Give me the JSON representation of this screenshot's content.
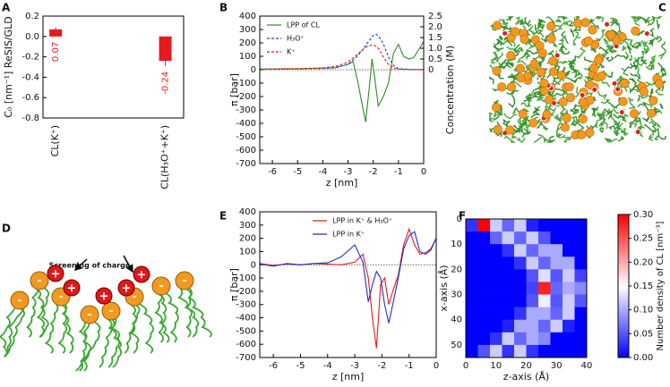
{
  "panel_labels": [
    "A",
    "B",
    "C",
    "D",
    "E",
    "F"
  ],
  "diagram": {
    "title": "Screening of charge",
    "cation": "+",
    "anion": "-"
  },
  "chart_data": [
    {
      "type": "bar",
      "ylabel": "C₀ [nm⁻¹] ReSIS/GLD",
      "categories": [
        "CL(K⁺)",
        "CL(H₃O⁺+K⁺)"
      ],
      "values": [
        0.07,
        -0.24
      ],
      "errors": [
        0.02,
        0.05
      ],
      "color": "#e8191c",
      "ylim": [
        -0.8,
        0.2
      ],
      "yticks": [
        0.2,
        {
          "value": 0,
          "label": "0.0"
        },
        -0.2,
        -0.4,
        -0.6,
        -0.8
      ]
    },
    {
      "type": "line",
      "xlabel": "z [nm]",
      "ylabel": "π [bar]",
      "y2label": "Concentration (M)",
      "xlim": [
        -6.5,
        0
      ],
      "xticks": [
        -6,
        -5,
        -4,
        -3,
        -2,
        -1,
        0
      ],
      "ylim": [
        -700,
        400
      ],
      "yticks": [
        -700,
        -600,
        -500,
        -400,
        -300,
        -200,
        -100,
        0,
        100,
        200,
        300,
        400
      ],
      "y2lim": [
        -4.375,
        2.5
      ],
      "y2ticks": [
        0,
        0.5,
        {
          "value": 1,
          "label": "1.0"
        },
        1.5,
        {
          "value": 2,
          "label": "2.0"
        },
        2.5
      ],
      "legend_loc": "upper left",
      "series": [
        {
          "name": "LPP of CL",
          "color": "#2e8b22",
          "linestyle": "solid",
          "x": [
            -6.5,
            -6,
            -5.5,
            -5,
            -4.5,
            -4,
            -3.5,
            -3.2,
            -3,
            -2.8,
            -2.6,
            -2.45,
            -2.3,
            -2.15,
            -2.05,
            -1.95,
            -1.8,
            -1.6,
            -1.4,
            -1.2,
            -1,
            -0.8,
            -0.6,
            -0.4,
            -0.2,
            0
          ],
          "values": [
            5,
            5,
            8,
            6,
            10,
            12,
            15,
            30,
            40,
            60,
            -100,
            -250,
            -390,
            -120,
            80,
            -50,
            -270,
            -200,
            -100,
            120,
            190,
            100,
            80,
            90,
            150,
            210
          ]
        },
        {
          "name": "H₃O⁺",
          "color": "#1f3de0",
          "linestyle": "dashed",
          "axis": "y2",
          "x": [
            -6.5,
            -6,
            -5,
            -4,
            -3.5,
            -3,
            -2.7,
            -2.4,
            -2.2,
            -2,
            -1.9,
            -1.8,
            -1.6,
            -1.4,
            -1.2,
            -1,
            -0.5,
            0
          ],
          "values": [
            0.02,
            0.03,
            0.04,
            0.06,
            0.1,
            0.25,
            0.55,
            0.95,
            1.3,
            1.6,
            1.65,
            1.6,
            1.2,
            0.6,
            0.2,
            0.05,
            0.01,
            0.01
          ]
        },
        {
          "name": "K⁺",
          "color": "#e8191c",
          "linestyle": "dashed",
          "axis": "y2",
          "x": [
            -6.5,
            -6,
            -5,
            -4,
            -3.5,
            -3,
            -2.7,
            -2.4,
            -2.2,
            -2,
            -1.9,
            -1.8,
            -1.6,
            -1.4,
            -1.2,
            -1,
            -0.5,
            0
          ],
          "values": [
            0.02,
            0.03,
            0.05,
            0.08,
            0.15,
            0.35,
            0.65,
            0.95,
            1.12,
            1.15,
            1.1,
            1.0,
            0.6,
            0.25,
            0.08,
            0.02,
            0.01,
            0.01
          ]
        }
      ]
    },
    {
      "type": "line",
      "xlabel": "z [nm]",
      "ylabel": "π [bar]",
      "xlim": [
        -6.5,
        0
      ],
      "xticks": [
        -6,
        -5,
        -4,
        -3,
        -2,
        -1,
        0
      ],
      "ylim": [
        -700,
        400
      ],
      "yticks": [
        -700,
        -600,
        -500,
        -400,
        -300,
        -200,
        -100,
        0,
        100,
        200,
        300,
        400
      ],
      "legend_loc": "upper center",
      "series": [
        {
          "name": "LPP in K⁺ & H₃O⁺",
          "color": "#e8191c",
          "linestyle": "solid",
          "x": [
            -6.5,
            -6,
            -5.5,
            -5,
            -4.5,
            -4,
            -3.5,
            -3,
            -2.7,
            -2.5,
            -2.35,
            -2.2,
            -2.05,
            -1.9,
            -1.75,
            -1.6,
            -1.4,
            -1.2,
            -1,
            -0.8,
            -0.6,
            -0.4,
            -0.2,
            0
          ],
          "values": [
            10,
            -5,
            5,
            0,
            10,
            5,
            0,
            20,
            80,
            -100,
            -400,
            -630,
            -150,
            -100,
            -300,
            -200,
            -80,
            150,
            270,
            150,
            80,
            90,
            120,
            200
          ]
        },
        {
          "name": "LPP in K⁺",
          "color": "#1f2fc8",
          "linestyle": "solid",
          "x": [
            -6.5,
            -6,
            -5.5,
            -5,
            -4.5,
            -4,
            -3.5,
            -3,
            -2.7,
            -2.5,
            -2.35,
            -2.2,
            -2.05,
            -1.9,
            -1.75,
            -1.6,
            -1.4,
            -1.2,
            -1,
            -0.8,
            -0.6,
            -0.4,
            -0.2,
            0
          ],
          "values": [
            5,
            -10,
            10,
            0,
            10,
            15,
            60,
            150,
            20,
            -280,
            -150,
            -50,
            -100,
            -300,
            -440,
            -300,
            -100,
            120,
            220,
            250,
            100,
            80,
            110,
            200
          ]
        }
      ]
    },
    {
      "type": "heatmap",
      "xlabel": "z-axis (Å)",
      "ylabel": "x-axis (Å)",
      "colorbar_label": "Number density of CL [nm⁻³]",
      "xlim": [
        0,
        40
      ],
      "xticks": [
        0,
        10,
        20,
        30,
        40
      ],
      "ylim": [
        0,
        55
      ],
      "yticks": [
        0,
        10,
        20,
        30,
        40,
        50
      ],
      "y_inverted": true,
      "xbins": [
        0,
        4,
        8,
        12,
        16,
        20,
        24,
        28,
        32,
        36,
        40
      ],
      "ybins": [
        0,
        5,
        10,
        15,
        20,
        25,
        30,
        35,
        40,
        45,
        50,
        55
      ],
      "clim": [
        0,
        0.3
      ],
      "cticks": [
        {
          "value": 0,
          "label": "0.00"
        },
        {
          "value": 0.05,
          "label": "0.05"
        },
        {
          "value": 0.1,
          "label": "0.10"
        },
        {
          "value": 0.15,
          "label": "0.15"
        },
        {
          "value": 0.2,
          "label": "0.20"
        },
        {
          "value": 0.25,
          "label": "0.25"
        },
        {
          "value": 0.3,
          "label": "0.30"
        }
      ],
      "z": [
        [
          0.03,
          0.3,
          0.12,
          0.06,
          0.12,
          0.02,
          0,
          0,
          0,
          0
        ],
        [
          0,
          0,
          0.06,
          0.12,
          0.06,
          0.12,
          0.05,
          0,
          0,
          0
        ],
        [
          0,
          0,
          0,
          0.03,
          0.12,
          0.06,
          0.1,
          0.1,
          0,
          0
        ],
        [
          0,
          0,
          0,
          0,
          0.03,
          0.12,
          0.06,
          0.1,
          0.1,
          0
        ],
        [
          0,
          0,
          0,
          0,
          0,
          0.05,
          0.13,
          0.05,
          0.12,
          0.04
        ],
        [
          0,
          0,
          0,
          0,
          0,
          0.04,
          0.28,
          0.06,
          0.1,
          0.08
        ],
        [
          0,
          0,
          0,
          0,
          0,
          0.05,
          0.14,
          0.05,
          0.12,
          0.05
        ],
        [
          0,
          0,
          0,
          0,
          0.03,
          0.1,
          0.1,
          0.06,
          0.12,
          0
        ],
        [
          0,
          0,
          0,
          0.02,
          0.1,
          0.1,
          0.06,
          0.12,
          0.02,
          0
        ],
        [
          0,
          0,
          0.03,
          0.12,
          0.06,
          0.1,
          0.08,
          0,
          0,
          0
        ],
        [
          0,
          0.05,
          0.12,
          0.03,
          0.12,
          0.03,
          0,
          0,
          0,
          0
        ]
      ]
    }
  ]
}
